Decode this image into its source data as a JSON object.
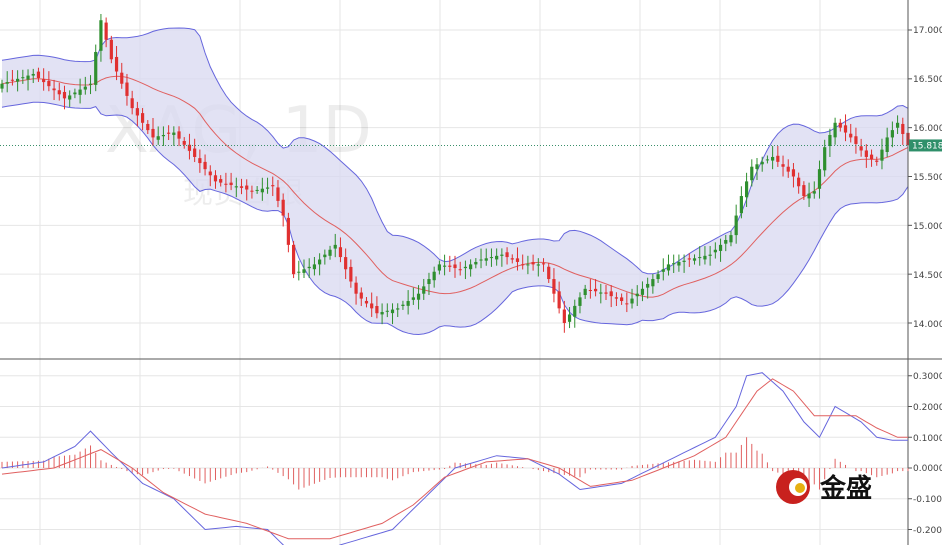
{
  "chart_data": {
    "type": "candlestick",
    "symbol": "XAG, 1D",
    "symbol_name": "现货白银",
    "current_price": "15.818",
    "colors": {
      "up": "#2f8f2f",
      "down": "#e03030",
      "band_line": "#6666dd",
      "band_fill": "#d8d8f0",
      "midline": "#e06060",
      "price_line": "#3a8f6a",
      "price_tag": "#2f8f6a",
      "macd": "#6666dd",
      "signal": "#e06060",
      "hist": "#e06060"
    },
    "price_axis": {
      "min": 13.6,
      "max": 17.15,
      "ticks": [
        "17.000",
        "16.500",
        "16.000",
        "15.500",
        "15.000",
        "14.500",
        "14.000"
      ],
      "tick_values": [
        17.0,
        16.5,
        16.0,
        15.5,
        15.0,
        14.5,
        14.0
      ]
    },
    "macd_axis": {
      "min": -0.25,
      "max": 0.33,
      "ticks": [
        "0.3000",
        "0.2000",
        "0.1000",
        "0.0000",
        "-0.1000",
        "-0.2000"
      ],
      "tick_values": [
        0.3,
        0.2,
        0.1,
        0.0,
        -0.1,
        -0.2
      ]
    },
    "close_path": [
      [
        0,
        16.45
      ],
      [
        6,
        16.55
      ],
      [
        12,
        16.3
      ],
      [
        17,
        16.45
      ],
      [
        19,
        17.1
      ],
      [
        21,
        16.7
      ],
      [
        25,
        16.2
      ],
      [
        29,
        15.9
      ],
      [
        33,
        15.95
      ],
      [
        37,
        15.7
      ],
      [
        41,
        15.45
      ],
      [
        45,
        15.4
      ],
      [
        48,
        15.35
      ],
      [
        52,
        15.4
      ],
      [
        54,
        15.1
      ],
      [
        56,
        14.5
      ],
      [
        60,
        14.6
      ],
      [
        64,
        14.8
      ],
      [
        68,
        14.3
      ],
      [
        72,
        14.1
      ],
      [
        76,
        14.15
      ],
      [
        80,
        14.3
      ],
      [
        84,
        14.6
      ],
      [
        88,
        14.55
      ],
      [
        92,
        14.65
      ],
      [
        96,
        14.7
      ],
      [
        100,
        14.6
      ],
      [
        104,
        14.6
      ],
      [
        106,
        14.3
      ],
      [
        108,
        14.0
      ],
      [
        112,
        14.35
      ],
      [
        116,
        14.3
      ],
      [
        120,
        14.2
      ],
      [
        124,
        14.4
      ],
      [
        128,
        14.6
      ],
      [
        132,
        14.65
      ],
      [
        136,
        14.7
      ],
      [
        140,
        14.9
      ],
      [
        142,
        15.3
      ],
      [
        144,
        15.6
      ],
      [
        148,
        15.7
      ],
      [
        152,
        15.5
      ],
      [
        154,
        15.3
      ],
      [
        156,
        15.35
      ],
      [
        158,
        15.8
      ],
      [
        160,
        16.05
      ],
      [
        163,
        15.9
      ],
      [
        166,
        15.7
      ],
      [
        168,
        15.65
      ],
      [
        170,
        15.9
      ],
      [
        172,
        16.05
      ],
      [
        174,
        15.82
      ]
    ],
    "macd_path": [
      [
        0,
        0.0
      ],
      [
        8,
        0.02
      ],
      [
        14,
        0.07
      ],
      [
        17,
        0.12
      ],
      [
        21,
        0.05
      ],
      [
        27,
        -0.05
      ],
      [
        33,
        -0.1
      ],
      [
        39,
        -0.2
      ],
      [
        45,
        -0.19
      ],
      [
        51,
        -0.2
      ],
      [
        57,
        -0.3
      ],
      [
        65,
        -0.25
      ],
      [
        75,
        -0.2
      ],
      [
        81,
        -0.1
      ],
      [
        87,
        0.0
      ],
      [
        95,
        0.04
      ],
      [
        101,
        0.03
      ],
      [
        107,
        -0.02
      ],
      [
        111,
        -0.07
      ],
      [
        119,
        -0.05
      ],
      [
        125,
        0.0
      ],
      [
        131,
        0.05
      ],
      [
        137,
        0.1
      ],
      [
        141,
        0.2
      ],
      [
        143,
        0.3
      ],
      [
        146,
        0.31
      ],
      [
        150,
        0.25
      ],
      [
        154,
        0.15
      ],
      [
        157,
        0.1
      ],
      [
        160,
        0.2
      ],
      [
        165,
        0.15
      ],
      [
        168,
        0.1
      ],
      [
        171,
        0.09
      ],
      [
        174,
        0.09
      ]
    ],
    "signal_path": [
      [
        0,
        -0.02
      ],
      [
        10,
        0.0
      ],
      [
        19,
        0.06
      ],
      [
        25,
        0.0
      ],
      [
        31,
        -0.08
      ],
      [
        39,
        -0.15
      ],
      [
        47,
        -0.18
      ],
      [
        55,
        -0.23
      ],
      [
        63,
        -0.23
      ],
      [
        73,
        -0.18
      ],
      [
        79,
        -0.12
      ],
      [
        85,
        -0.03
      ],
      [
        93,
        0.02
      ],
      [
        101,
        0.03
      ],
      [
        107,
        0.0
      ],
      [
        113,
        -0.06
      ],
      [
        121,
        -0.04
      ],
      [
        127,
        0.0
      ],
      [
        133,
        0.04
      ],
      [
        139,
        0.1
      ],
      [
        145,
        0.25
      ],
      [
        148,
        0.29
      ],
      [
        152,
        0.25
      ],
      [
        156,
        0.17
      ],
      [
        160,
        0.17
      ],
      [
        164,
        0.17
      ],
      [
        168,
        0.13
      ],
      [
        172,
        0.1
      ],
      [
        174,
        0.1
      ]
    ]
  },
  "logo": {
    "text": "金盛"
  }
}
